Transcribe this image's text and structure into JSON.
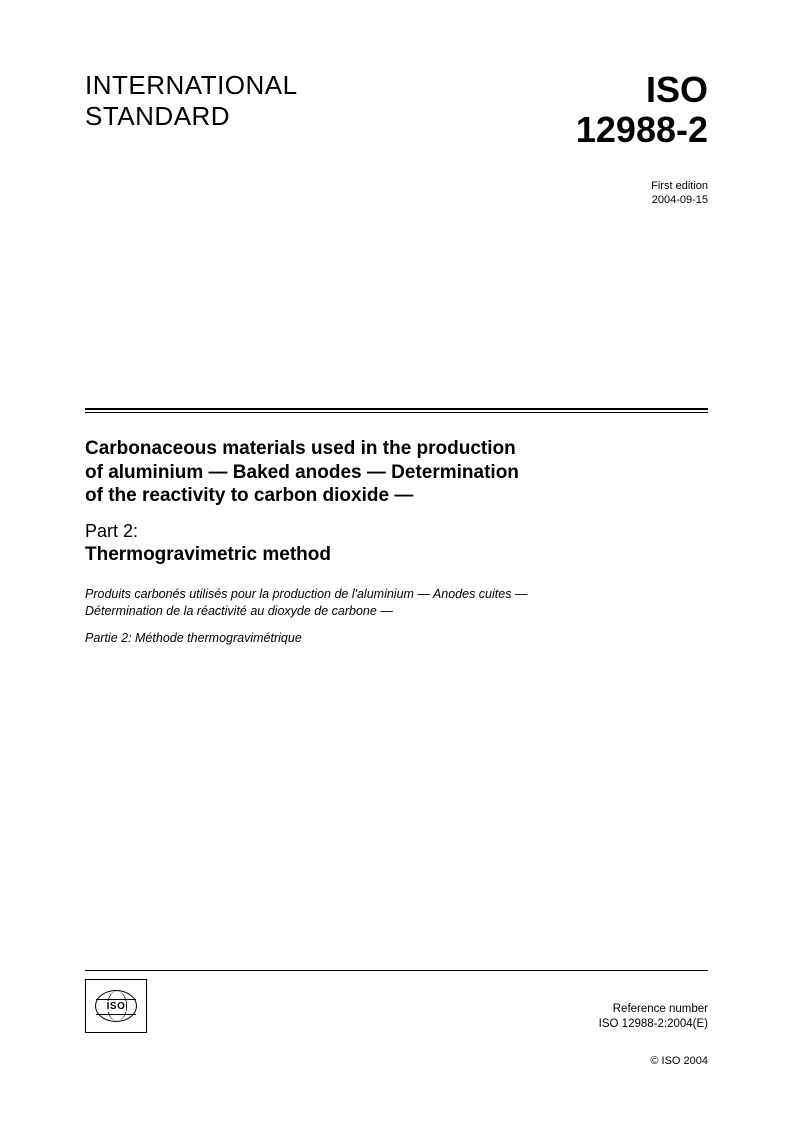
{
  "header": {
    "left_line1": "INTERNATIONAL",
    "left_line2": "STANDARD",
    "right_line1": "ISO",
    "right_line2": "12988-2"
  },
  "edition": {
    "label": "First edition",
    "date": "2004-09-15"
  },
  "title": {
    "main_en": "Carbonaceous materials used in the production of aluminium — Baked anodes — Determination of the reactivity to carbon dioxide —",
    "part_label_en": "Part 2:",
    "part_name_en": "Thermogravimetric method",
    "main_fr": "Produits carbonés utilisés pour la production de l'aluminium — Anodes cuites — Détermination de la réactivité au dioxyde de carbone —",
    "part_fr": "Partie 2: Méthode thermogravimétrique"
  },
  "footer": {
    "logo_text": "ISO",
    "ref_label": "Reference number",
    "ref_number": "ISO 12988-2:2004(E)",
    "copyright": "© ISO 2004"
  },
  "colors": {
    "text": "#000000",
    "background": "#ffffff"
  }
}
